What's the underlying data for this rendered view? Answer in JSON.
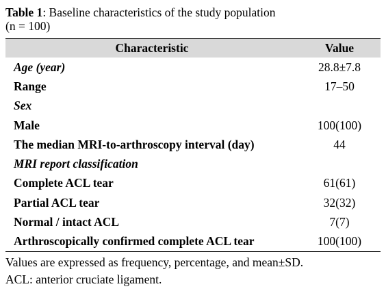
{
  "caption": {
    "label": "Table 1",
    "text": ": Baseline characteristics of the study population",
    "line2": "(n = 100)"
  },
  "table": {
    "header": [
      "Characteristic",
      "Value"
    ],
    "rows": [
      {
        "label": "Age (year)",
        "value": "28.8±7.8",
        "style": "italic"
      },
      {
        "label": "Range",
        "value": "17–50",
        "style": "bold"
      },
      {
        "label": "Sex",
        "style": "italic"
      },
      {
        "label": "Male",
        "value": "100(100)",
        "style": "bold"
      },
      {
        "label": "The median MRI-to-arthroscopy interval (day)",
        "value": "44",
        "style": "bold"
      },
      {
        "label": "MRI report classification",
        "style": "italic"
      },
      {
        "label": "Complete ACL tear",
        "value": "61(61)",
        "style": "bold"
      },
      {
        "label": "Partial ACL tear",
        "value": "32(32)",
        "style": "bold"
      },
      {
        "label": "Normal / intact ACL",
        "value": "7(7)",
        "style": "bold"
      },
      {
        "label": "Arthroscopically confirmed complete ACL tear",
        "value": "100(100)",
        "style": "bold"
      }
    ]
  },
  "notes": [
    "Values are expressed as frequency, percentage, and mean±SD.",
    "ACL: anterior cruciate ligament."
  ]
}
